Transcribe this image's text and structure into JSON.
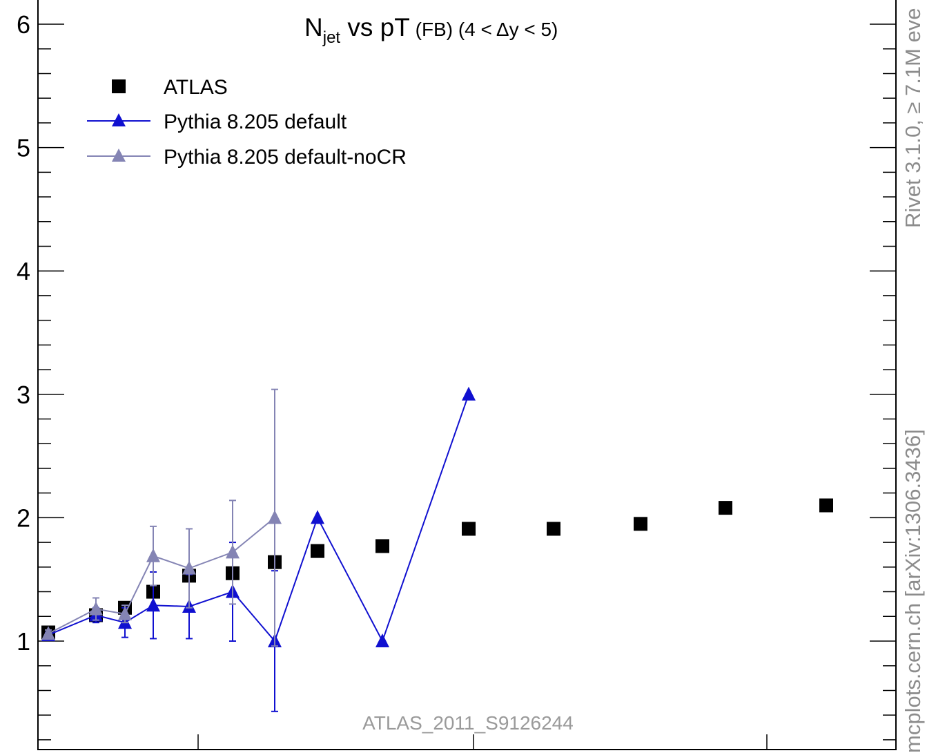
{
  "chart_data": {
    "type": "scatter",
    "title": {
      "main": "N",
      "main_sub": "jet",
      "main_rest": " vs pT",
      "small": " (FB) (4 <",
      "delta": "Δ",
      "tail": "y < 5)"
    },
    "xlabel": "",
    "ylabel": "",
    "ylim": [
      0.2,
      6.2
    ],
    "y_ticks": [
      "1",
      "2",
      "3",
      "4",
      "5",
      "6"
    ],
    "y_tick_values": [
      1,
      2,
      3,
      4,
      5,
      6
    ],
    "legend_position": "top-left",
    "watermark": "ATLAS_2011_S9126244",
    "side_text_top": "Rivet 3.1.0, ≥ 7.1M eve",
    "side_text_bottom": "mcplots.cern.ch [arXiv:1306.3436]",
    "series": [
      {
        "name": "ATLAS",
        "color": "#000000",
        "marker": "square",
        "line": false,
        "x": [
          1,
          2,
          3,
          4,
          5,
          6,
          7,
          8,
          9,
          10,
          11,
          12,
          13,
          14
        ],
        "y": [
          1.07,
          1.21,
          1.27,
          1.4,
          1.53,
          1.55,
          1.64,
          1.73,
          1.77,
          1.91,
          1.91,
          1.95,
          2.08,
          2.1
        ],
        "err": [
          0.02,
          0.03,
          0.03,
          0.04,
          0.04,
          0.04,
          0.04,
          0.04,
          0.04,
          0.04,
          0.04,
          0.04,
          0.04,
          0.04
        ]
      },
      {
        "name": "Pythia 8.205 default",
        "color": "#1010d0",
        "marker": "triangle",
        "line": true,
        "x": [
          1,
          2,
          3,
          4,
          5,
          6,
          7,
          8,
          9,
          10
        ],
        "y": [
          1.05,
          1.21,
          1.15,
          1.29,
          1.28,
          1.4,
          1.0,
          2.0,
          1.0,
          3.0
        ],
        "err": [
          0.02,
          0.06,
          0.12,
          0.27,
          0.26,
          0.4,
          0.57,
          0,
          0,
          0
        ]
      },
      {
        "name": "Pythia 8.205 default-noCR",
        "color": "#8484b4",
        "marker": "triangle",
        "line": true,
        "x": [
          1,
          2,
          3,
          4,
          5,
          6,
          7
        ],
        "y": [
          1.06,
          1.26,
          1.22,
          1.69,
          1.59,
          1.72,
          2.0
        ],
        "err": [
          0.03,
          0.09,
          0.07,
          0.24,
          0.32,
          0.42,
          1.04
        ]
      }
    ]
  }
}
